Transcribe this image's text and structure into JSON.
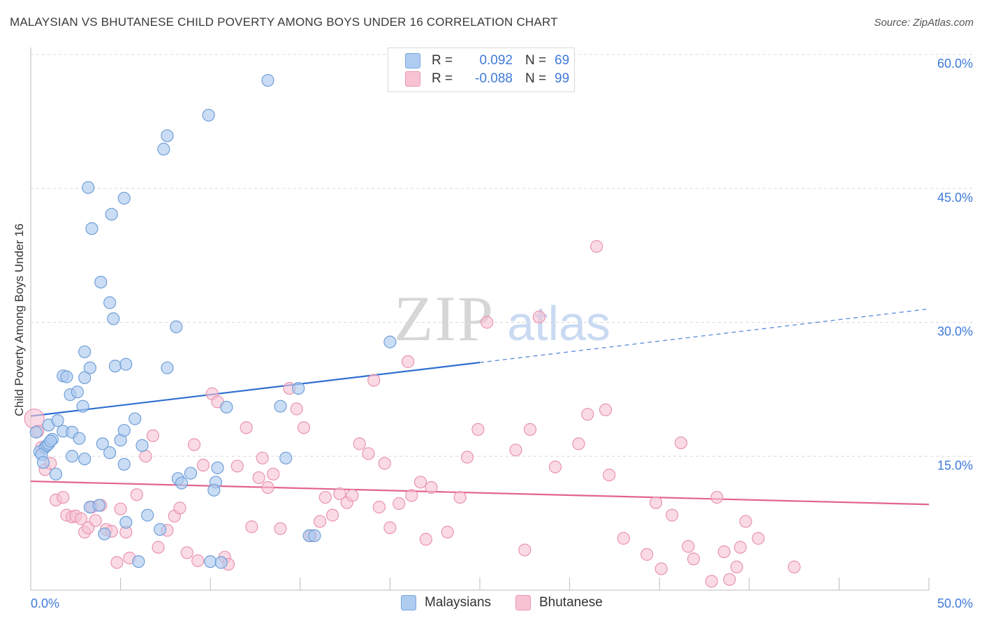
{
  "title": "MALAYSIAN VS BHUTANESE CHILD POVERTY AMONG BOYS UNDER 16 CORRELATION CHART",
  "source": "Source: ZipAtlas.com",
  "watermark": {
    "zip": "ZIP",
    "atlas": "atlas"
  },
  "legend": {
    "r_label": "R =",
    "n_label": "N =",
    "rows": [
      {
        "r": "0.092",
        "n": "69",
        "color": "#aecbf0",
        "border": "#7aa8e0"
      },
      {
        "r": "-0.088",
        "n": "99",
        "color": "#f7c3d3",
        "border": "#ec97b2"
      }
    ]
  },
  "colors": {
    "malaysians_fill": "#aecbf0",
    "malaysians_stroke": "#6f9fd8",
    "malaysians_line": "#2f6fd1",
    "bhutanese_fill": "#f7c3d3",
    "bhutanese_stroke": "#e993b0",
    "bhutanese_line": "#e2638f",
    "tick_label": "#3f7ad9",
    "grid": "#d8d8d8"
  },
  "chart_data": {
    "type": "scatter",
    "title": "MALAYSIAN VS BHUTANESE CHILD POVERTY AMONG BOYS UNDER 16 CORRELATION CHART",
    "xlabel": "",
    "ylabel": "Child Poverty Among Boys Under 16",
    "xlim": [
      0,
      50
    ],
    "ylim": [
      0,
      60
    ],
    "x_tick_labels": [
      "0.0%",
      "50.0%"
    ],
    "y_tick_labels": [
      "15.0%",
      "30.0%",
      "45.0%",
      "60.0%"
    ],
    "y_tick_values": [
      15,
      30,
      45,
      60
    ],
    "grid": true,
    "legend_position": "top-center",
    "series": [
      {
        "name": "Malaysians",
        "r": 0.092,
        "n": 69,
        "trend": {
          "x": [
            0,
            25
          ],
          "y": [
            19.5,
            25.5
          ],
          "dashed_to": [
            50,
            31.5
          ]
        },
        "points": [
          [
            0.3,
            17.7
          ],
          [
            0.5,
            15.5
          ],
          [
            0.8,
            16.0
          ],
          [
            0.6,
            15.2
          ],
          [
            0.9,
            16.2
          ],
          [
            1.0,
            16.4
          ],
          [
            0.7,
            14.3
          ],
          [
            1.2,
            16.9
          ],
          [
            1.4,
            13.0
          ],
          [
            1.0,
            18.5
          ],
          [
            1.5,
            19.0
          ],
          [
            1.8,
            17.8
          ],
          [
            2.3,
            17.7
          ],
          [
            2.7,
            17.0
          ],
          [
            2.3,
            15.0
          ],
          [
            3.0,
            14.7
          ],
          [
            1.8,
            24.0
          ],
          [
            2.0,
            23.9
          ],
          [
            2.2,
            21.9
          ],
          [
            2.6,
            22.2
          ],
          [
            3.0,
            23.8
          ],
          [
            3.3,
            24.9
          ],
          [
            2.9,
            20.6
          ],
          [
            3.0,
            26.7
          ],
          [
            4.0,
            16.4
          ],
          [
            4.4,
            15.4
          ],
          [
            5.0,
            16.8
          ],
          [
            5.2,
            17.9
          ],
          [
            5.8,
            19.2
          ],
          [
            6.2,
            16.2
          ],
          [
            5.2,
            14.1
          ],
          [
            4.7,
            25.1
          ],
          [
            5.3,
            25.3
          ],
          [
            7.6,
            24.9
          ],
          [
            8.1,
            29.5
          ],
          [
            4.6,
            30.4
          ],
          [
            4.4,
            32.2
          ],
          [
            3.9,
            34.5
          ],
          [
            3.4,
            40.5
          ],
          [
            3.2,
            45.1
          ],
          [
            4.5,
            42.1
          ],
          [
            5.2,
            43.9
          ],
          [
            7.4,
            49.4
          ],
          [
            7.6,
            50.9
          ],
          [
            9.9,
            53.2
          ],
          [
            13.2,
            57.1
          ],
          [
            20.0,
            27.8
          ],
          [
            14.9,
            22.6
          ],
          [
            10.9,
            20.5
          ],
          [
            13.9,
            20.6
          ],
          [
            14.2,
            14.8
          ],
          [
            10.4,
            13.7
          ],
          [
            8.9,
            13.1
          ],
          [
            8.2,
            12.5
          ],
          [
            8.4,
            12.0
          ],
          [
            10.3,
            12.1
          ],
          [
            10.2,
            11.2
          ],
          [
            3.3,
            9.3
          ],
          [
            3.8,
            9.5
          ],
          [
            4.1,
            6.3
          ],
          [
            5.3,
            7.6
          ],
          [
            6.5,
            8.4
          ],
          [
            7.2,
            6.8
          ],
          [
            10.0,
            3.2
          ],
          [
            10.6,
            3.1
          ],
          [
            6.0,
            3.2
          ],
          [
            15.5,
            6.1
          ],
          [
            15.8,
            6.1
          ],
          [
            1.1,
            16.7
          ]
        ]
      },
      {
        "name": "Bhutanese",
        "r": -0.088,
        "n": 99,
        "trend": {
          "x": [
            0,
            50
          ],
          "y": [
            12.2,
            9.6
          ]
        },
        "points": [
          [
            0.2,
            19.2
          ],
          [
            0.4,
            17.8
          ],
          [
            0.6,
            16.0
          ],
          [
            0.8,
            13.5
          ],
          [
            1.1,
            14.2
          ],
          [
            1.4,
            10.1
          ],
          [
            1.8,
            10.4
          ],
          [
            2.0,
            8.4
          ],
          [
            2.3,
            8.2
          ],
          [
            2.5,
            8.3
          ],
          [
            2.8,
            8.0
          ],
          [
            3.0,
            6.5
          ],
          [
            3.2,
            7.0
          ],
          [
            3.4,
            9.3
          ],
          [
            3.6,
            7.8
          ],
          [
            3.9,
            9.5
          ],
          [
            4.2,
            6.8
          ],
          [
            4.5,
            6.6
          ],
          [
            4.8,
            3.1
          ],
          [
            5.0,
            9.1
          ],
          [
            5.3,
            6.5
          ],
          [
            5.5,
            3.6
          ],
          [
            5.9,
            10.7
          ],
          [
            6.4,
            15.0
          ],
          [
            6.8,
            17.3
          ],
          [
            7.1,
            4.8
          ],
          [
            7.6,
            6.7
          ],
          [
            8.0,
            8.3
          ],
          [
            8.3,
            9.2
          ],
          [
            8.7,
            4.2
          ],
          [
            9.1,
            16.3
          ],
          [
            9.3,
            3.3
          ],
          [
            9.6,
            14.0
          ],
          [
            10.1,
            22.0
          ],
          [
            10.4,
            21.1
          ],
          [
            10.8,
            3.7
          ],
          [
            11.0,
            2.9
          ],
          [
            11.5,
            13.9
          ],
          [
            12.0,
            18.2
          ],
          [
            12.3,
            7.1
          ],
          [
            12.7,
            12.6
          ],
          [
            12.9,
            14.8
          ],
          [
            13.2,
            11.5
          ],
          [
            13.5,
            13.0
          ],
          [
            13.9,
            6.9
          ],
          [
            14.4,
            22.6
          ],
          [
            14.8,
            20.3
          ],
          [
            15.2,
            18.2
          ],
          [
            15.6,
            6.1
          ],
          [
            16.1,
            7.7
          ],
          [
            16.4,
            10.4
          ],
          [
            16.8,
            8.4
          ],
          [
            17.2,
            10.8
          ],
          [
            17.6,
            9.8
          ],
          [
            17.9,
            10.6
          ],
          [
            18.3,
            16.4
          ],
          [
            18.8,
            15.3
          ],
          [
            19.1,
            23.5
          ],
          [
            19.4,
            9.3
          ],
          [
            19.7,
            14.2
          ],
          [
            20.0,
            7.0
          ],
          [
            20.5,
            9.7
          ],
          [
            21.2,
            10.6
          ],
          [
            21.0,
            25.6
          ],
          [
            21.7,
            12.1
          ],
          [
            22.0,
            5.7
          ],
          [
            22.3,
            11.5
          ],
          [
            23.2,
            6.5
          ],
          [
            23.9,
            10.4
          ],
          [
            24.3,
            14.9
          ],
          [
            24.9,
            18.0
          ],
          [
            25.4,
            30.0
          ],
          [
            27.0,
            15.7
          ],
          [
            27.5,
            4.5
          ],
          [
            27.8,
            18.0
          ],
          [
            28.3,
            30.6
          ],
          [
            29.2,
            13.8
          ],
          [
            30.5,
            16.4
          ],
          [
            31.0,
            19.7
          ],
          [
            31.5,
            38.5
          ],
          [
            32.0,
            20.2
          ],
          [
            32.2,
            12.9
          ],
          [
            33.0,
            5.8
          ],
          [
            34.3,
            4.0
          ],
          [
            34.8,
            9.8
          ],
          [
            35.1,
            2.4
          ],
          [
            35.7,
            8.4
          ],
          [
            36.2,
            16.5
          ],
          [
            36.6,
            4.9
          ],
          [
            36.9,
            3.5
          ],
          [
            37.9,
            1.0
          ],
          [
            38.2,
            10.4
          ],
          [
            38.6,
            4.3
          ],
          [
            38.9,
            1.2
          ],
          [
            39.3,
            2.6
          ],
          [
            39.5,
            4.8
          ],
          [
            39.8,
            7.7
          ],
          [
            40.5,
            5.8
          ],
          [
            42.5,
            2.6
          ]
        ]
      }
    ]
  },
  "bottom_legend": [
    "Malaysians",
    "Bhutanese"
  ]
}
